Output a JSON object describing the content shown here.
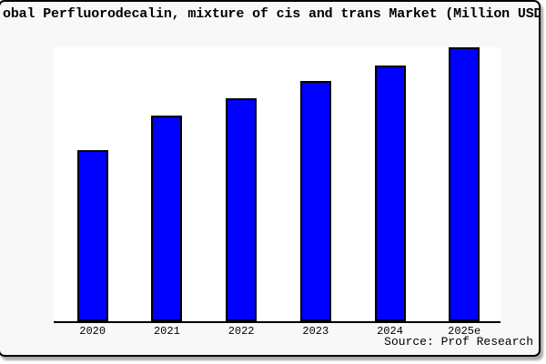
{
  "chart_data": {
    "type": "bar",
    "title": "obal Perfluorodecalin, mixture of cis and trans Market (Million USD",
    "categories": [
      "2020",
      "2021",
      "2022",
      "2023",
      "2024",
      "2025e"
    ],
    "values": [
      62.6,
      75.2,
      81.5,
      87.7,
      93.5,
      99.9
    ],
    "value_unit": "percent-of-plot-height (no numeric y-axis shown in image)",
    "xlabel": "",
    "ylabel": "",
    "ylim": [
      0,
      100
    ],
    "grid": false,
    "legend": false,
    "y_axis_visible": false,
    "source": "Source: Prof Research",
    "colors": {
      "bar_fill": "#0000ff",
      "bar_border": "#000000",
      "axis": "#000000",
      "card_background": "#f8f8f8",
      "plot_background": "#ffffff",
      "card_border": "#000000"
    }
  }
}
